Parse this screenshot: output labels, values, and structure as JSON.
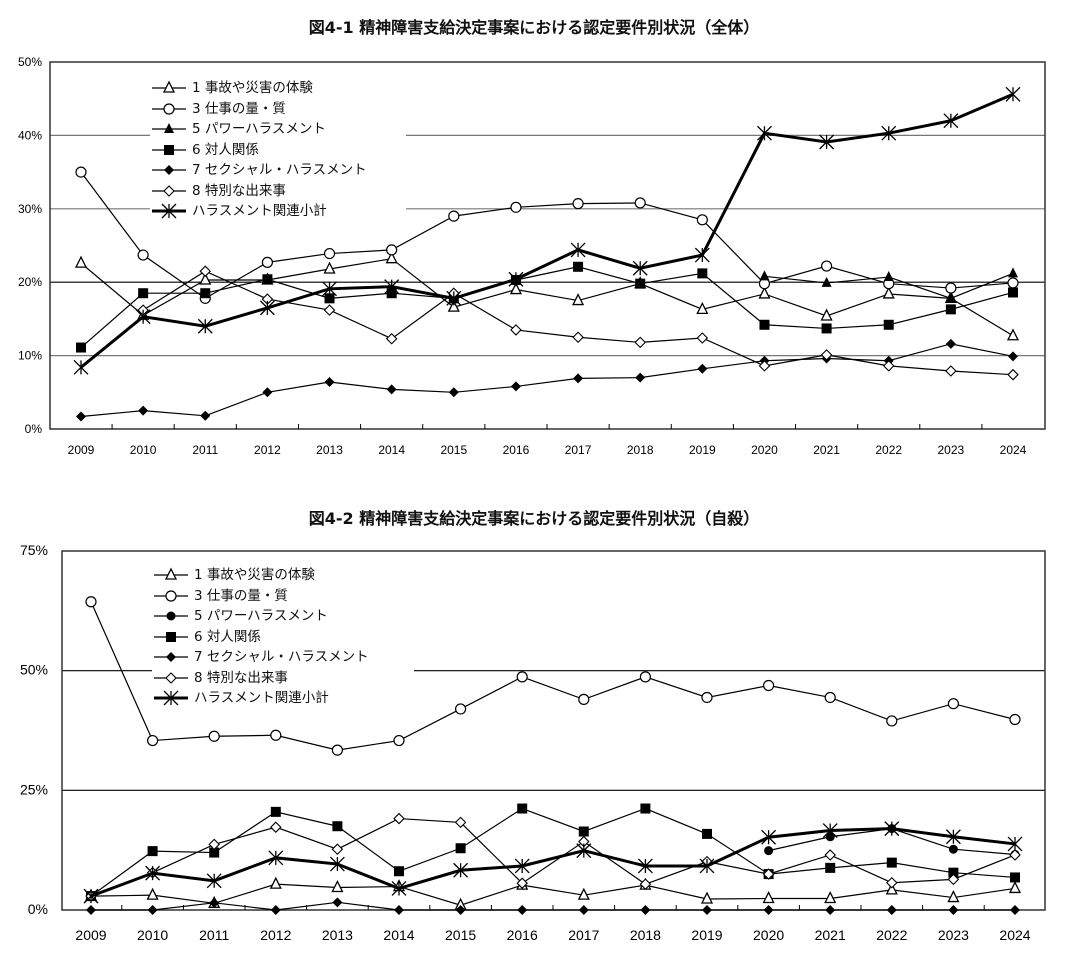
{
  "chart_data": [
    {
      "type": "line",
      "title": "図4-1  精神障害支給決定事案における認定要件別状況（全体）",
      "xlabel": "",
      "ylabel": "",
      "ylim": [
        0,
        50
      ],
      "yticks": [
        "0%",
        "10%",
        "20%",
        "30%",
        "40%",
        "50%"
      ],
      "categories": [
        "2009",
        "2010",
        "2011",
        "2012",
        "2013",
        "2014",
        "2015",
        "2016",
        "2017",
        "2018",
        "2019",
        "2020",
        "2021",
        "2022",
        "2023",
        "2024"
      ],
      "legend_position": "top-left",
      "series": [
        {
          "name": "1 事故や災害の体験",
          "marker": "triangle-open",
          "values": [
            22.6,
            15.5,
            20.3,
            20.3,
            21.8,
            23.2,
            16.6,
            19.0,
            17.5,
            19.8,
            16.3,
            18.4,
            15.4,
            18.4,
            17.8,
            12.7
          ]
        },
        {
          "name": "3 仕事の量・質",
          "marker": "circle-open",
          "values": [
            35.0,
            23.7,
            17.8,
            22.7,
            23.9,
            24.4,
            29.0,
            30.2,
            30.7,
            30.8,
            28.5,
            19.8,
            22.2,
            19.8,
            19.2,
            19.9
          ]
        },
        {
          "name": "5 パワーハラスメント",
          "marker": "triangle-filled",
          "values": [
            null,
            null,
            null,
            null,
            null,
            null,
            null,
            null,
            null,
            null,
            null,
            20.8,
            19.9,
            20.7,
            17.8,
            21.2
          ]
        },
        {
          "name": "6 対人関係",
          "marker": "square-filled",
          "values": [
            11.1,
            18.5,
            18.5,
            20.4,
            17.8,
            18.5,
            17.8,
            20.3,
            22.1,
            19.8,
            21.2,
            14.2,
            13.7,
            14.2,
            16.3,
            18.6
          ]
        },
        {
          "name": "7 セクシャル・ハラスメント",
          "marker": "diamond-filled",
          "values": [
            1.7,
            2.5,
            1.8,
            5.0,
            6.4,
            5.4,
            5.0,
            5.8,
            6.9,
            7.0,
            8.2,
            9.3,
            9.6,
            9.3,
            11.6,
            9.9
          ]
        },
        {
          "name": "8 特別な出来事",
          "marker": "diamond-open",
          "values": [
            null,
            16.2,
            21.5,
            17.7,
            16.2,
            12.3,
            18.5,
            13.5,
            12.5,
            11.8,
            12.4,
            8.6,
            10.1,
            8.6,
            7.9,
            7.4
          ]
        },
        {
          "name": "ハラスメント関連小計",
          "marker": "asterisk",
          "bold": true,
          "values": [
            8.4,
            15.3,
            14.0,
            16.5,
            19.1,
            19.4,
            17.8,
            20.4,
            24.4,
            21.9,
            23.7,
            40.3,
            39.1,
            40.3,
            42.0,
            45.6
          ]
        }
      ]
    },
    {
      "type": "line",
      "title": "図4-2  精神障害支給決定事案における認定要件別状況（自殺）",
      "xlabel": "",
      "ylabel": "",
      "ylim": [
        0,
        75
      ],
      "yticks": [
        "0%",
        "25%",
        "50%",
        "75%"
      ],
      "categories": [
        "2009",
        "2010",
        "2011",
        "2012",
        "2013",
        "2014",
        "2015",
        "2016",
        "2017",
        "2018",
        "2019",
        "2020",
        "2021",
        "2022",
        "2023",
        "2024"
      ],
      "legend_position": "top-left",
      "series": [
        {
          "name": "1 事故や災害の体験",
          "marker": "triangle-open",
          "values": [
            2.9,
            3.1,
            1.4,
            5.4,
            4.7,
            4.9,
            1.0,
            5.2,
            3.1,
            5.2,
            2.3,
            2.4,
            2.4,
            4.2,
            2.6,
            4.5
          ]
        },
        {
          "name": "3 仕事の量・質",
          "marker": "circle-open",
          "values": [
            64.4,
            35.4,
            36.3,
            36.5,
            33.4,
            35.4,
            42.0,
            48.7,
            44.0,
            48.7,
            44.4,
            46.9,
            44.4,
            39.5,
            43.1,
            39.8
          ]
        },
        {
          "name": "5 パワーハラスメント",
          "marker": "circle-filled",
          "values": [
            null,
            null,
            null,
            null,
            null,
            null,
            null,
            null,
            null,
            null,
            null,
            12.4,
            15.3,
            17.0,
            12.7,
            11.6
          ]
        },
        {
          "name": "6 対人関係",
          "marker": "square-filled",
          "values": [
            2.9,
            12.3,
            12.0,
            20.5,
            17.5,
            8.1,
            12.9,
            21.2,
            16.4,
            21.2,
            15.9,
            7.5,
            8.8,
            9.9,
            7.8,
            6.8
          ]
        },
        {
          "name": "7 セクシャル・ハラスメント",
          "marker": "diamond-filled",
          "values": [
            0,
            0,
            1.5,
            0,
            1.6,
            0,
            0,
            0,
            0,
            0,
            0,
            0,
            0,
            0,
            0,
            0
          ]
        },
        {
          "name": "8 特別な出来事",
          "marker": "diamond-open",
          "values": [
            2.9,
            7.8,
            13.7,
            17.3,
            12.7,
            19.1,
            18.3,
            5.6,
            14.3,
            5.4,
            10.1,
            7.5,
            11.5,
            5.7,
            6.4,
            11.5
          ]
        },
        {
          "name": "ハラスメント関連小計",
          "marker": "asterisk",
          "bold": true,
          "values": [
            2.9,
            7.7,
            6.1,
            10.9,
            9.6,
            4.5,
            8.3,
            9.2,
            12.4,
            9.2,
            9.2,
            15.2,
            16.6,
            17.0,
            15.3,
            13.8
          ]
        }
      ]
    }
  ]
}
